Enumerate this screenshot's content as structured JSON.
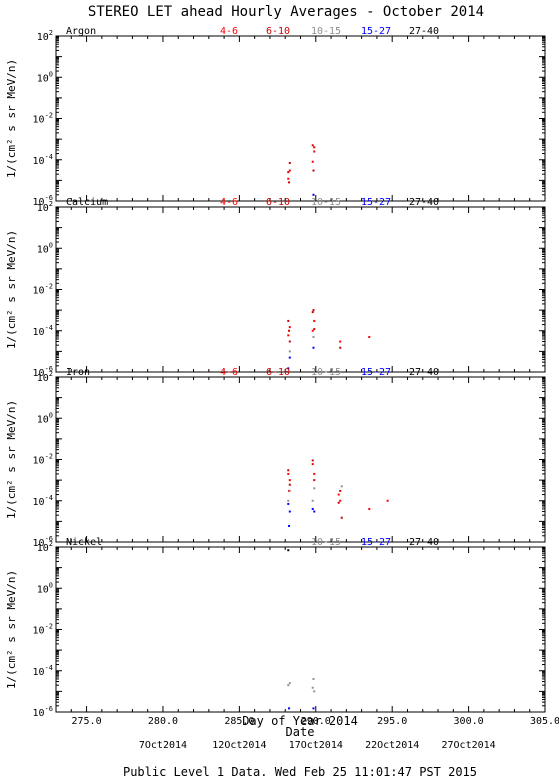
{
  "title": "STEREO LET ahead Hourly Averages - October 2014",
  "footer": "Public Level 1 Data. Wed Feb 25 11:01:47 PST 2015",
  "ylabel": "1/(cm² s sr MeV/n)",
  "xlabel_top": "Day of Year 2014",
  "xlabel_bottom": "Date",
  "colors": {
    "4-6": "#ff0000",
    "6-10": "#cc0000",
    "10-15": "#909090",
    "15-27": "#0000ff",
    "27-40": "#000000"
  },
  "chart_data": {
    "type": "scatter",
    "y_scale": "log",
    "xlim": [
      273.0,
      305.0
    ],
    "ylim": [
      1e-06,
      100
    ],
    "x_ticks": [
      275.0,
      280.0,
      285.0,
      290.0,
      295.0,
      300.0,
      305.0
    ],
    "x_tick_labels": [
      "275.0",
      "280.0",
      "285.0",
      "290.0",
      "295.0",
      "300.0",
      "305.0"
    ],
    "y_ticks": [
      1e-06,
      0.0001,
      0.01,
      1,
      100
    ],
    "y_tick_labels": [
      {
        "base": "10",
        "exp": "-6"
      },
      {
        "base": "10",
        "exp": "-4"
      },
      {
        "base": "10",
        "exp": "-2"
      },
      {
        "base": "10",
        "exp": "0"
      },
      {
        "base": "10",
        "exp": "2"
      }
    ],
    "date_ticks": [
      {
        "x": 280.0,
        "label": "7Oct2014"
      },
      {
        "x": 285.0,
        "label": "12Oct2014"
      },
      {
        "x": 290.0,
        "label": "17Oct2014"
      },
      {
        "x": 295.0,
        "label": "22Oct2014"
      },
      {
        "x": 300.0,
        "label": "27Oct2014"
      }
    ],
    "panels": [
      {
        "element": "Argon",
        "legend": [
          "4-6",
          "6-10",
          "10-15",
          "15-27",
          "27-40"
        ],
        "series": [
          {
            "name": "4-6",
            "points": [
              [
                288.2,
                1.2e-05
              ],
              [
                288.3,
                3e-05
              ],
              [
                289.8,
                8e-05
              ],
              [
                289.9,
                0.00025
              ]
            ]
          },
          {
            "name": "6-10",
            "points": [
              [
                288.2,
                2.5e-05
              ],
              [
                288.3,
                7e-05
              ],
              [
                288.25,
                8e-06
              ],
              [
                289.8,
                0.0005
              ],
              [
                289.9,
                0.0004
              ],
              [
                289.85,
                3e-05
              ]
            ]
          },
          {
            "name": "15-27",
            "points": [
              [
                289.85,
                2e-06
              ]
            ]
          }
        ]
      },
      {
        "element": "Calcium",
        "legend": [
          "4-6",
          "6-10",
          "10-15",
          "15-27",
          "27-40"
        ],
        "series": [
          {
            "name": "4-6",
            "points": [
              [
                288.2,
                6e-05
              ],
              [
                288.3,
                0.00015
              ],
              [
                289.8,
                0.0001
              ],
              [
                289.9,
                0.0003
              ],
              [
                291.6,
                3e-05
              ],
              [
                293.5,
                5e-05
              ]
            ]
          },
          {
            "name": "6-10",
            "points": [
              [
                288.2,
                0.0003
              ],
              [
                288.25,
                0.0001
              ],
              [
                288.3,
                3e-05
              ],
              [
                289.8,
                0.0008
              ],
              [
                289.85,
                0.001
              ],
              [
                289.9,
                0.00012
              ],
              [
                291.6,
                1.5e-05
              ]
            ]
          },
          {
            "name": "10-15",
            "points": [
              [
                288.3,
                1e-05
              ],
              [
                289.85,
                5e-05
              ]
            ]
          },
          {
            "name": "15-27",
            "points": [
              [
                288.2,
                1.5e-06
              ],
              [
                288.3,
                5e-06
              ],
              [
                289.85,
                1.5e-05
              ]
            ]
          }
        ]
      },
      {
        "element": "Iron",
        "legend": [
          "4-6",
          "6-10",
          "10-15",
          "15-27",
          "27-40"
        ],
        "series": [
          {
            "name": "4-6",
            "points": [
              [
                288.2,
                0.002
              ],
              [
                288.3,
                0.001
              ],
              [
                288.25,
                0.0003
              ],
              [
                289.8,
                0.006
              ],
              [
                289.9,
                0.002
              ],
              [
                291.5,
                0.0002
              ],
              [
                291.6,
                0.0001
              ],
              [
                293.5,
                4e-05
              ],
              [
                294.7,
                0.0001
              ]
            ]
          },
          {
            "name": "6-10",
            "points": [
              [
                288.2,
                0.003
              ],
              [
                288.3,
                0.0006
              ],
              [
                289.8,
                0.009
              ],
              [
                289.9,
                0.001
              ],
              [
                291.5,
                8e-05
              ],
              [
                291.6,
                0.0003
              ],
              [
                291.7,
                1.5e-05
              ]
            ]
          },
          {
            "name": "10-15",
            "points": [
              [
                288.2,
                0.0001
              ],
              [
                288.3,
                0.0003
              ],
              [
                289.8,
                0.0001
              ],
              [
                289.9,
                0.0004
              ],
              [
                291.7,
                0.0005
              ]
            ]
          },
          {
            "name": "15-27",
            "points": [
              [
                288.2,
                7e-05
              ],
              [
                288.3,
                3e-05
              ],
              [
                288.25,
                6e-06
              ],
              [
                289.8,
                4e-05
              ],
              [
                289.9,
                3e-05
              ]
            ]
          },
          {
            "name": "27-40",
            "points": [
              [
                288.2,
                4e-07
              ]
            ]
          }
        ]
      },
      {
        "element": "Nickel",
        "legend": [
          "10-15",
          "15-27",
          "27-40"
        ],
        "series": [
          {
            "name": "10-15",
            "points": [
              [
                288.2,
                2e-05
              ],
              [
                288.3,
                2.5e-05
              ],
              [
                289.85,
                4e-05
              ],
              [
                289.9,
                1e-05
              ],
              [
                289.8,
                1.5e-05
              ]
            ]
          },
          {
            "name": "15-27",
            "points": [
              [
                288.25,
                1.5e-06
              ],
              [
                289.85,
                1.5e-06
              ]
            ]
          }
        ]
      }
    ]
  }
}
